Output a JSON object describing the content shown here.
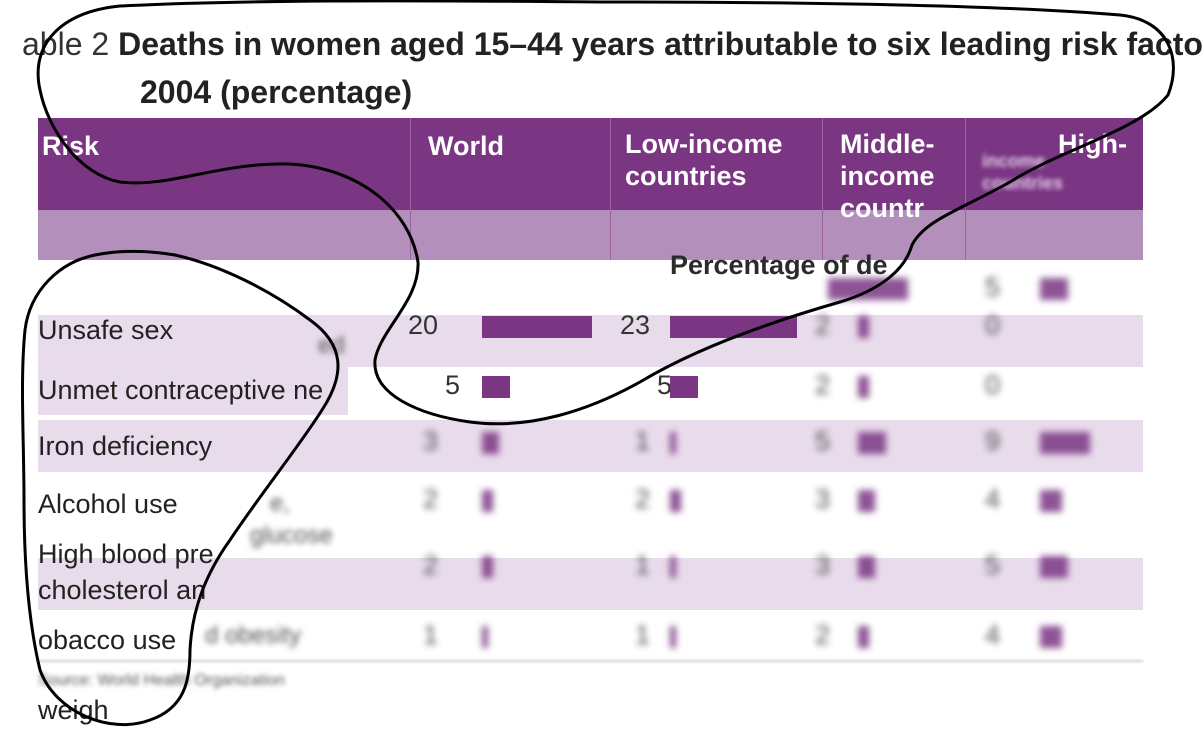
{
  "table": {
    "title_prefix": "able 2",
    "title_line1": "Deaths in women aged 15–44 years attributable to six leading risk facto",
    "title_line2": "2004 (percentage)",
    "columns": [
      {
        "label": "Risk"
      },
      {
        "label": "World"
      },
      {
        "label": "Low-income\ncountries"
      },
      {
        "label": "Middle-\nincome\ncountr"
      },
      {
        "label": "High-"
      },
      {
        "label": "income\ncountries"
      }
    ],
    "subheader": "Percentage of de",
    "rows": [
      {
        "label": "Unsafe sex",
        "values": [
          "20",
          "23",
          "2",
          "0"
        ],
        "bars": [
          20,
          23,
          2,
          0
        ]
      },
      {
        "label": "Unmet contraceptive ne",
        "values": [
          "5",
          "5",
          "2",
          "0"
        ],
        "bars": [
          5,
          5,
          2,
          0
        ]
      },
      {
        "label": "Iron deficiency",
        "values": [
          "3",
          "1",
          "5",
          "9"
        ],
        "bars": [
          3,
          1,
          5,
          9
        ]
      },
      {
        "label": "Alcohol use",
        "values": [
          "2",
          "2",
          "3",
          "4"
        ],
        "bars": [
          2,
          2,
          3,
          4
        ]
      },
      {
        "label": "High blood pre\ncholesterol an",
        "values": [
          "2",
          "1",
          "3",
          "5"
        ],
        "bars": [
          2,
          1,
          3,
          5
        ]
      },
      {
        "label": "obacco use",
        "values": [
          "1",
          "1",
          "2",
          "4"
        ],
        "bars": [
          1,
          1,
          2,
          4
        ]
      },
      {
        "label": "weigh",
        "values": [],
        "bars": []
      }
    ],
    "top_row": {
      "values": [
        "",
        "",
        "",
        "5"
      ],
      "bars": [
        0,
        0,
        5,
        5
      ]
    },
    "ghost_text": [
      "ed",
      "e,",
      "glucose",
      "d obesity"
    ],
    "source": "Source: World Health Organization"
  },
  "colors": {
    "header_bg": "#7a3683",
    "subheader_bg": "#b38fbb",
    "band_bg": "#e8dbeb",
    "bar": "#7a3683"
  }
}
